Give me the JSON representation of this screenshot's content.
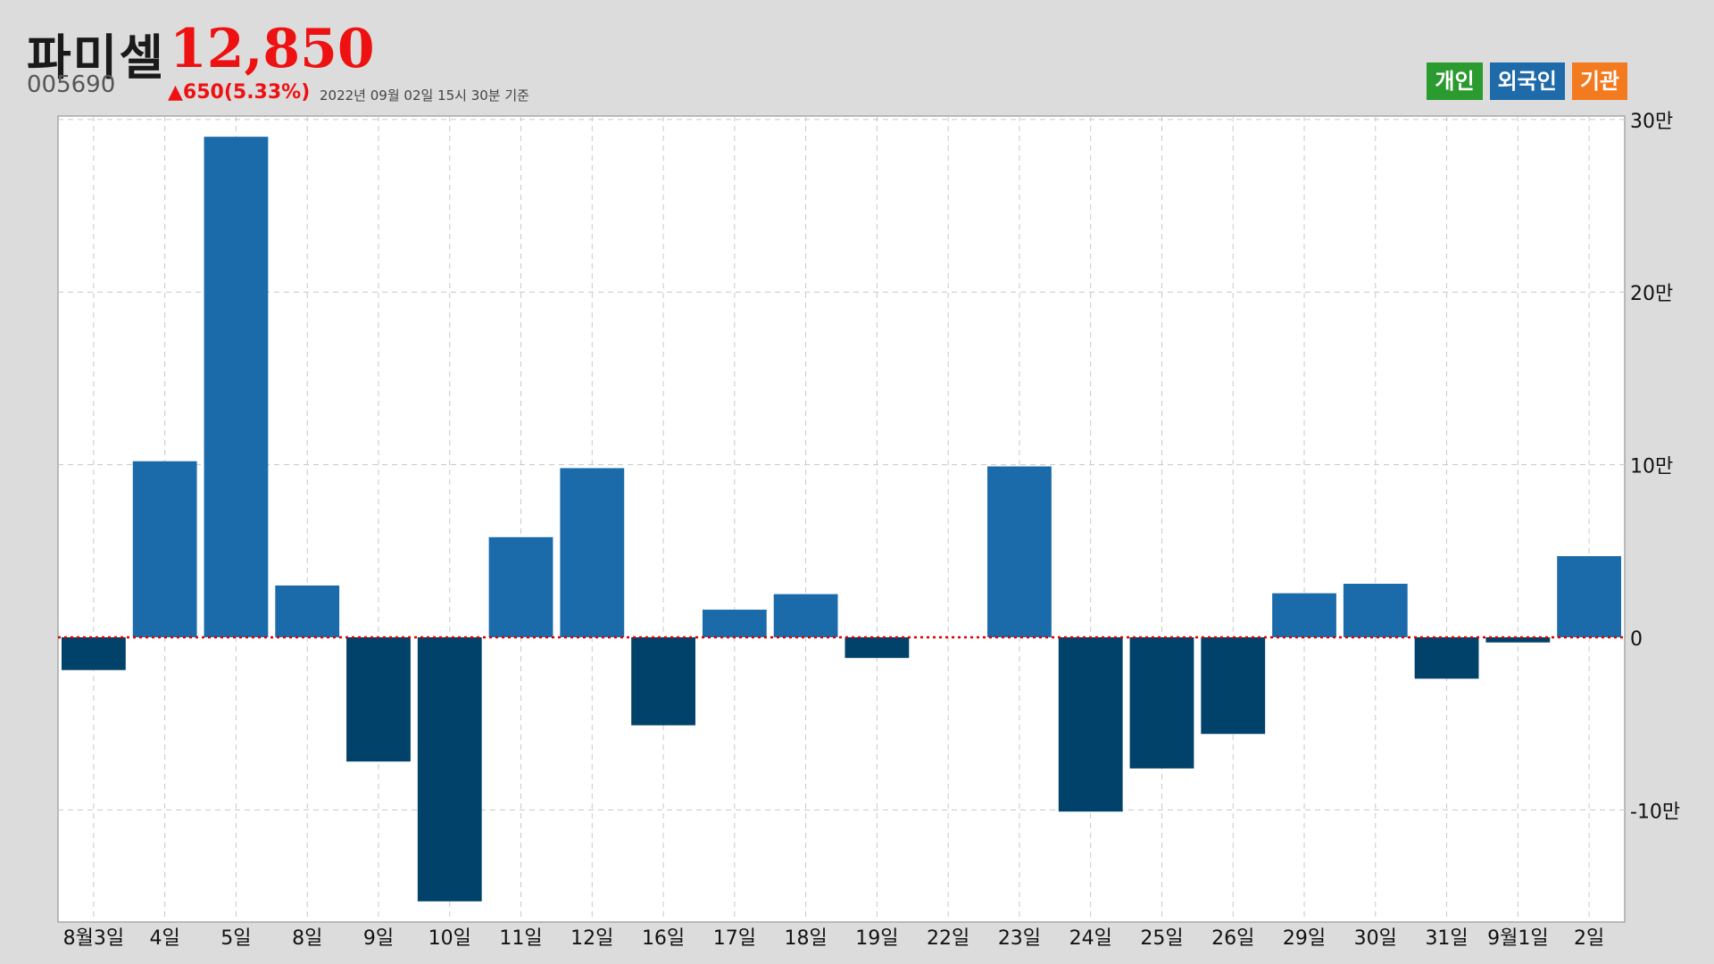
{
  "header": {
    "name": "파미셀",
    "price": "12,850",
    "code": "005690",
    "change": "▲650(5.33%)",
    "as_of": "2022년 09월 02일 15시 30분 기준"
  },
  "legend": [
    {
      "label": "개인",
      "color": "#2b9a2f"
    },
    {
      "label": "외국인",
      "color": "#1f6aa8"
    },
    {
      "label": "기관",
      "color": "#f47a1f"
    }
  ],
  "colors": {
    "positive": "#1b6bab",
    "negative": "#00426a",
    "zero_line": "#dd0000",
    "grid": "#c8c8c8",
    "plot_bg": "#ffffff"
  },
  "chart_data": {
    "type": "bar",
    "series_label": "외국인",
    "categories": [
      "8월3일",
      "4일",
      "5일",
      "8일",
      "9일",
      "10일",
      "11일",
      "12일",
      "16일",
      "17일",
      "18일",
      "19일",
      "22일",
      "23일",
      "24일",
      "25일",
      "26일",
      "29일",
      "30일",
      "31일",
      "9월1일",
      "2일"
    ],
    "values": [
      -19000,
      102000,
      290000,
      30000,
      -72000,
      -153000,
      58000,
      98000,
      -51000,
      16000,
      25000,
      -12000,
      0,
      99000,
      -101000,
      -76000,
      -56000,
      25500,
      31000,
      -24000,
      -3000,
      47000
    ],
    "y_ticks": [
      {
        "value": 300000,
        "label": "30만"
      },
      {
        "value": 200000,
        "label": "20만"
      },
      {
        "value": 100000,
        "label": "10만"
      },
      {
        "value": 0,
        "label": "0"
      },
      {
        "value": -100000,
        "label": "-10만"
      }
    ],
    "ylim": [
      -165000,
      302000
    ],
    "grid": true,
    "legend_position": "top-right"
  }
}
